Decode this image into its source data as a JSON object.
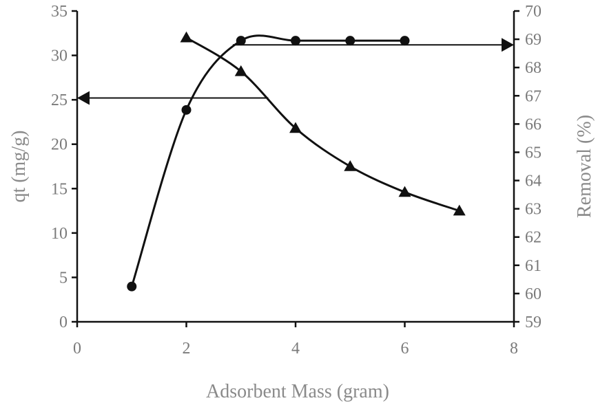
{
  "chart_data": {
    "type": "line",
    "xlabel": "Adsorbent Mass (gram)",
    "ylabel_left": "qt (mg/g)",
    "ylabel_right": "Removal (%)",
    "xlim": [
      0,
      8
    ],
    "ylim_left": [
      0,
      35
    ],
    "ylim_right": [
      59,
      70
    ],
    "x_ticks": [
      "0",
      "2",
      "4",
      "6",
      "8"
    ],
    "y_left_ticks": [
      "0",
      "5",
      "10",
      "15",
      "20",
      "25",
      "30",
      "35"
    ],
    "y_right_ticks": [
      "59",
      "60",
      "61",
      "62",
      "63",
      "64",
      "65",
      "66",
      "67",
      "68",
      "69",
      "70"
    ],
    "grid": false,
    "legend": "none",
    "series": [
      {
        "axis": "right",
        "marker": "circle",
        "x": [
          1,
          2,
          3,
          4,
          5,
          6
        ],
        "values": [
          60.25,
          66.5,
          68.95,
          68.95,
          68.95,
          68.95
        ]
      },
      {
        "axis": "left",
        "marker": "triangle",
        "x": [
          2,
          3,
          4,
          5,
          6,
          7
        ],
        "values": [
          32.0,
          28.2,
          21.8,
          17.5,
          14.6,
          12.5
        ]
      }
    ],
    "annotations": [
      {
        "type": "arrow",
        "direction": "left",
        "points_to": "left axis",
        "y_data": 25.2,
        "y_axis": "left",
        "x_from": 3.5
      },
      {
        "type": "arrow",
        "direction": "right",
        "points_to": "right axis",
        "y_data": 68.8,
        "y_axis": "right",
        "x_from": 2.85
      }
    ]
  }
}
